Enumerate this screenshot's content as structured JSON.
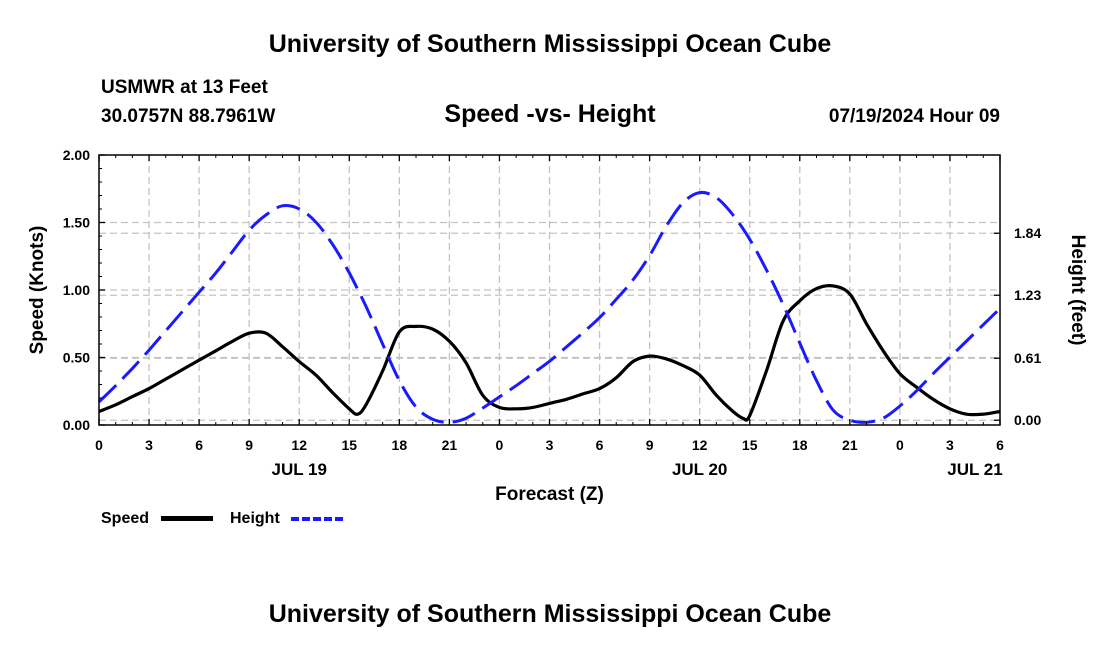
{
  "header": {
    "title": "University of Southern Mississippi Ocean Cube",
    "station": "USMWR at 13 Feet",
    "coords": "30.0757N  88.7961W",
    "run_time": "07/19/2024 Hour 09"
  },
  "footer": {
    "title": "University of Southern Mississippi Ocean Cube"
  },
  "legend": {
    "speed_label": "Speed",
    "height_label": "Height"
  },
  "chart_data": {
    "type": "line",
    "title": "Speed -vs- Height",
    "xlabel": "Forecast (Z)",
    "ylabel": "Speed (Knots)",
    "y2label": "Height (feet)",
    "xlim": [
      0,
      54
    ],
    "ylim": [
      0,
      2.0
    ],
    "y2lim": [
      -0.047,
      2.61
    ],
    "x_ticks": [
      0,
      3,
      6,
      9,
      12,
      15,
      18,
      21,
      24,
      27,
      30,
      33,
      36,
      39,
      42,
      45,
      48,
      51,
      54
    ],
    "x_tick_labels": [
      "0",
      "3",
      "6",
      "9",
      "12",
      "15",
      "18",
      "21",
      "0",
      "3",
      "6",
      "9",
      "12",
      "15",
      "18",
      "21",
      "0",
      "3",
      "6"
    ],
    "date_labels": [
      {
        "x": 12,
        "label": "JUL 19"
      },
      {
        "x": 36,
        "label": "JUL 20"
      },
      {
        "x": 52.5,
        "label": "JUL 21"
      }
    ],
    "y_ticks": [
      0,
      0.5,
      1.0,
      1.5,
      2.0
    ],
    "y_tick_labels": [
      "0.00",
      "0.50",
      "1.00",
      "1.50",
      "2.00"
    ],
    "y2_ticks": [
      0,
      0.61,
      1.23,
      1.84
    ],
    "y2_tick_labels": [
      "0.00",
      "0.61",
      "1.23",
      "1.84"
    ],
    "grid": true,
    "series": [
      {
        "name": "Speed",
        "axis": "left",
        "color": "#000000",
        "style": "solid",
        "x": [
          0,
          1,
          2,
          3,
          4,
          5,
          6,
          7,
          8,
          9,
          10,
          11,
          12,
          13,
          14,
          15,
          15.5,
          16,
          17,
          18,
          19,
          20,
          21,
          22,
          23,
          24,
          25,
          26,
          27,
          28,
          29,
          30,
          31,
          32,
          33,
          34,
          35,
          36,
          37,
          38,
          38.6,
          39,
          40,
          41,
          42,
          43,
          44,
          45,
          46,
          47,
          48,
          49,
          50,
          51,
          52,
          53,
          54
        ],
        "values": [
          0.1,
          0.15,
          0.21,
          0.27,
          0.34,
          0.41,
          0.48,
          0.55,
          0.62,
          0.68,
          0.68,
          0.58,
          0.47,
          0.37,
          0.24,
          0.12,
          0.08,
          0.15,
          0.4,
          0.69,
          0.73,
          0.71,
          0.62,
          0.46,
          0.22,
          0.13,
          0.12,
          0.13,
          0.16,
          0.19,
          0.23,
          0.27,
          0.35,
          0.47,
          0.51,
          0.49,
          0.44,
          0.37,
          0.22,
          0.1,
          0.05,
          0.07,
          0.4,
          0.77,
          0.92,
          1.01,
          1.03,
          0.97,
          0.75,
          0.55,
          0.38,
          0.28,
          0.19,
          0.12,
          0.08,
          0.08,
          0.1
        ]
      },
      {
        "name": "Height",
        "axis": "right",
        "color": "#1a1aff",
        "style": "dashed",
        "x": [
          0,
          1,
          2,
          3,
          4,
          5,
          6,
          7,
          8,
          9,
          10,
          11,
          12,
          13,
          14,
          15,
          16,
          17,
          18,
          19,
          20,
          21,
          22,
          23,
          24,
          25,
          26,
          27,
          28,
          29,
          30,
          31,
          32,
          33,
          34,
          35,
          36,
          37,
          38,
          39,
          40,
          41,
          42,
          43,
          44,
          45,
          46,
          47,
          48,
          49,
          50,
          51,
          52,
          53,
          54
        ],
        "values": [
          0.18,
          0.34,
          0.51,
          0.69,
          0.88,
          1.07,
          1.26,
          1.45,
          1.66,
          1.87,
          2.02,
          2.11,
          2.08,
          1.95,
          1.73,
          1.45,
          1.12,
          0.75,
          0.39,
          0.13,
          0.01,
          -0.02,
          0.02,
          0.12,
          0.23,
          0.34,
          0.46,
          0.58,
          0.72,
          0.86,
          1.01,
          1.19,
          1.38,
          1.62,
          1.91,
          2.14,
          2.24,
          2.19,
          2.02,
          1.78,
          1.48,
          1.14,
          0.76,
          0.39,
          0.1,
          0.0,
          -0.02,
          0.02,
          0.14,
          0.29,
          0.46,
          0.62,
          0.78,
          0.94,
          1.1
        ]
      }
    ]
  }
}
